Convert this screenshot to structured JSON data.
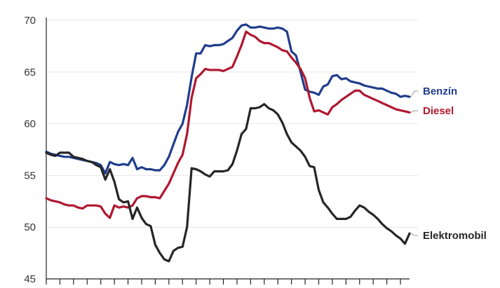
{
  "chart_data": {
    "type": "line",
    "title": "",
    "xlabel": "",
    "ylabel": "",
    "ylim": [
      45,
      70
    ],
    "yticks": [
      45,
      50,
      55,
      60,
      65,
      70
    ],
    "grid": "horizontal",
    "legend": "inline-right",
    "x_count": 81,
    "x_tick_every": 3,
    "series": [
      {
        "name": "Benzín",
        "color": "#1f3d8c",
        "values": [
          57.3,
          57.1,
          57.0,
          56.9,
          56.8,
          56.8,
          56.7,
          56.6,
          56.5,
          56.4,
          56.3,
          56.2,
          56.0,
          55.2,
          56.3,
          56.1,
          56.0,
          56.1,
          56.0,
          56.7,
          55.6,
          55.8,
          55.6,
          55.6,
          55.5,
          55.5,
          56.0,
          56.8,
          58.0,
          59.2,
          60.0,
          61.8,
          64.5,
          66.8,
          66.8,
          67.6,
          67.5,
          67.6,
          67.6,
          67.7,
          68.0,
          68.3,
          69.0,
          69.5,
          69.6,
          69.3,
          69.3,
          69.4,
          69.3,
          69.2,
          69.2,
          69.3,
          69.2,
          68.9,
          67.0,
          66.6,
          65.0,
          63.3,
          63.1,
          63.0,
          62.8,
          63.6,
          63.8,
          64.6,
          64.7,
          64.3,
          64.4,
          64.1,
          64.0,
          63.9,
          63.7,
          63.6,
          63.5,
          63.4,
          63.4,
          63.2,
          63.0,
          62.9,
          62.6,
          62.7,
          62.6
        ]
      },
      {
        "name": "Diesel",
        "color": "#b01730",
        "values": [
          52.8,
          52.6,
          52.5,
          52.4,
          52.2,
          52.1,
          52.1,
          51.9,
          51.8,
          52.1,
          52.1,
          52.1,
          52.0,
          51.3,
          50.9,
          52.1,
          51.9,
          52.0,
          51.9,
          52.1,
          52.8,
          53.0,
          53.0,
          52.9,
          52.9,
          52.8,
          53.5,
          54.2,
          55.2,
          56.2,
          57.0,
          59.0,
          62.5,
          64.4,
          64.8,
          65.3,
          65.2,
          65.2,
          65.2,
          65.1,
          65.3,
          65.5,
          66.5,
          67.6,
          68.9,
          68.6,
          68.4,
          68.0,
          67.8,
          67.8,
          67.6,
          67.4,
          67.1,
          67.0,
          66.4,
          65.9,
          65.3,
          64.4,
          62.5,
          61.2,
          61.3,
          61.1,
          60.9,
          61.6,
          61.9,
          62.3,
          62.6,
          62.9,
          63.2,
          63.2,
          62.8,
          62.6,
          62.4,
          62.2,
          62.0,
          61.8,
          61.6,
          61.4,
          61.3,
          61.2,
          61.1
        ]
      },
      {
        "name": "Elektromobil",
        "color": "#262626",
        "values": [
          57.2,
          57.0,
          56.9,
          57.2,
          57.2,
          57.2,
          56.8,
          56.7,
          56.6,
          56.4,
          56.3,
          56.0,
          55.8,
          54.6,
          55.6,
          54.4,
          52.7,
          52.4,
          52.5,
          50.8,
          51.9,
          50.9,
          50.3,
          50.1,
          48.3,
          47.5,
          46.9,
          46.7,
          47.7,
          48.0,
          48.1,
          50.0,
          55.7,
          55.6,
          55.4,
          55.1,
          54.9,
          55.4,
          55.4,
          55.4,
          55.5,
          56.1,
          57.4,
          59.0,
          59.5,
          61.5,
          61.5,
          61.6,
          61.9,
          61.5,
          61.3,
          60.9,
          60.1,
          59.0,
          58.2,
          57.8,
          57.4,
          56.8,
          55.9,
          55.8,
          53.6,
          52.4,
          51.9,
          51.3,
          50.8,
          50.8,
          50.8,
          51.0,
          51.6,
          52.1,
          51.9,
          51.5,
          51.2,
          50.8,
          50.3,
          49.9,
          49.6,
          49.2,
          48.9,
          48.4,
          49.4
        ]
      }
    ]
  }
}
